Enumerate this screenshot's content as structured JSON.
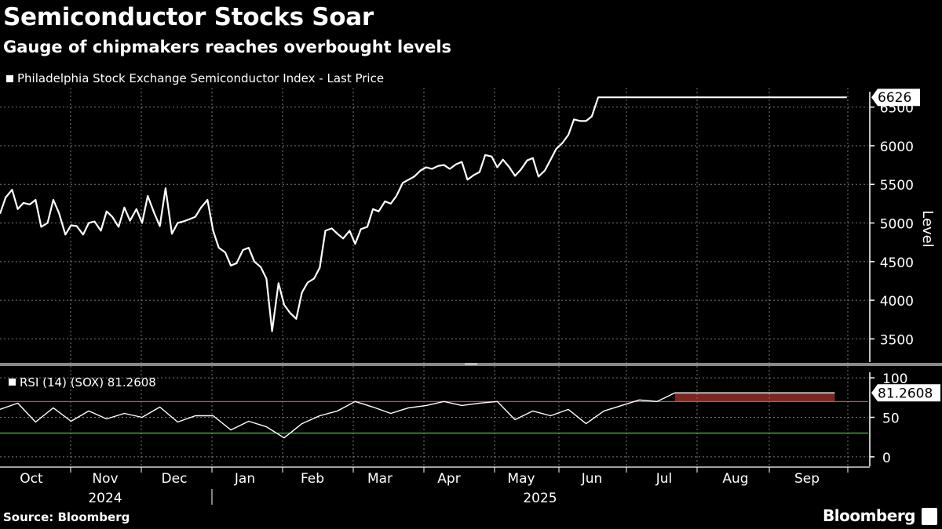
{
  "header": {
    "title": "Semiconductor Stocks Soar",
    "subtitle": "Gauge of chipmakers reaches overbought levels"
  },
  "footer": {
    "source": "Source: Bloomberg",
    "brand": "Bloomberg"
  },
  "colors": {
    "background": "#000000",
    "line": "#ffffff",
    "grid": "#7a7a7a",
    "overbought": "#e0453c",
    "oversold": "#57c04b"
  },
  "chart_data": [
    {
      "type": "line",
      "name": "price",
      "legend": "Philadelphia Stock Exchange Semiconductor Index - Last Price",
      "ylabel": "Level",
      "ylim": [
        3200,
        6750
      ],
      "yticks": [
        3500,
        4000,
        4500,
        5000,
        5500,
        6000,
        6500
      ],
      "ytick_labels": [
        "3500",
        "4000",
        "4500",
        "5000",
        "5500",
        "6000",
        "6500"
      ],
      "last_value_label": "6626",
      "x": [
        0,
        0.08,
        0.17,
        0.25,
        0.33,
        0.42,
        0.5,
        0.58,
        0.67,
        0.75,
        0.83,
        0.92,
        1,
        1.08,
        1.17,
        1.25,
        1.33,
        1.42,
        1.5,
        1.58,
        1.67,
        1.75,
        1.83,
        1.92,
        2,
        2.08,
        2.17,
        2.25,
        2.33,
        2.42,
        2.5,
        2.58,
        2.67,
        2.75,
        2.83,
        2.92,
        3,
        3.08,
        3.17,
        3.25,
        3.33,
        3.42,
        3.5,
        3.58,
        3.67,
        3.75,
        3.83,
        3.92,
        4,
        4.08,
        4.17,
        4.25,
        4.33,
        4.42,
        4.5,
        4.58,
        4.67,
        4.75,
        4.83,
        4.92,
        5,
        5.08,
        5.17,
        5.25,
        5.33,
        5.42,
        5.5,
        5.58,
        5.67,
        5.75,
        5.83,
        5.92,
        6,
        6.08,
        6.17,
        6.25,
        6.33,
        6.42,
        6.5,
        6.58,
        6.67,
        6.75,
        6.83,
        6.92,
        7,
        7.08,
        7.17,
        7.25,
        7.33,
        7.42,
        7.5,
        7.58,
        7.67,
        7.75,
        7.83,
        7.92,
        8,
        8.08,
        8.17,
        8.25,
        8.33,
        8.42,
        8.5,
        8.58,
        8.67,
        8.75,
        8.83,
        8.92,
        9,
        9.08,
        9.17,
        9.25,
        9.33,
        9.42,
        9.5,
        9.58,
        9.67,
        9.75,
        9.83,
        9.92,
        10,
        10.08,
        10.17,
        10.25,
        10.33,
        10.42,
        10.5,
        10.58,
        10.67,
        10.75,
        10.83,
        10.92,
        11,
        11.08,
        11.17,
        11.25,
        11.33,
        11.42,
        11.5,
        11.58,
        11.67,
        11.75,
        11.83,
        11.92,
        12
      ],
      "values": [
        5120,
        5330,
        5430,
        5180,
        5260,
        5240,
        5300,
        4950,
        5000,
        5300,
        5130,
        4850,
        4970,
        4960,
        4850,
        5000,
        5020,
        4900,
        5150,
        5080,
        4950,
        5200,
        5030,
        5180,
        5000,
        5350,
        5130,
        4960,
        5450,
        4860,
        5000,
        5020,
        5050,
        5080,
        5200,
        5300,
        4900,
        4680,
        4620,
        4450,
        4480,
        4650,
        4680,
        4500,
        4430,
        4280,
        3600,
        4220,
        3940,
        3840,
        3760,
        4100,
        4230,
        4280,
        4420,
        4900,
        4930,
        4860,
        4800,
        4900,
        4730,
        4920,
        4950,
        5180,
        5150,
        5280,
        5250,
        5350,
        5520,
        5560,
        5600,
        5680,
        5720,
        5700,
        5740,
        5750,
        5700,
        5760,
        5790,
        5560,
        5620,
        5660,
        5880,
        5860,
        5720,
        5820,
        5720,
        5610,
        5690,
        5810,
        5840,
        5600,
        5680,
        5820,
        5960,
        6040,
        6140,
        6340,
        6320,
        6320,
        6380,
        6626,
        6626,
        6626,
        6626,
        6626,
        6626,
        6626,
        6626,
        6626,
        6626,
        6626,
        6626,
        6626,
        6626,
        6626,
        6626,
        6626,
        6626,
        6626,
        6626,
        6626,
        6626,
        6626,
        6626,
        6626,
        6626,
        6626,
        6626,
        6626,
        6626,
        6626,
        6626,
        6626,
        6626,
        6626,
        6626,
        6626,
        6626,
        6626,
        6626,
        6626,
        6626,
        6626,
        6626
      ]
    },
    {
      "type": "line",
      "name": "rsi",
      "legend": "RSI (14) (SOX) 81.2608",
      "ylim": [
        -12,
        112
      ],
      "yticks": [
        0,
        50,
        100
      ],
      "ytick_labels": [
        "0",
        "50",
        "100"
      ],
      "last_value_label": "81.2608",
      "overbought": 70,
      "oversold": 30,
      "x": [
        0,
        0.25,
        0.5,
        0.75,
        1,
        1.25,
        1.5,
        1.75,
        2,
        2.25,
        2.5,
        2.75,
        3,
        3.25,
        3.5,
        3.75,
        4,
        4.25,
        4.5,
        4.75,
        5,
        5.25,
        5.5,
        5.75,
        6,
        6.25,
        6.5,
        6.75,
        7,
        7.25,
        7.5,
        7.75,
        8,
        8.25,
        8.5,
        8.75,
        9,
        9.25,
        9.5,
        9.75,
        10,
        10.25,
        10.5,
        10.75,
        11,
        11.25,
        11.5,
        11.75,
        12
      ],
      "values": [
        60,
        68,
        44,
        62,
        45,
        58,
        48,
        55,
        50,
        63,
        44,
        52,
        52,
        34,
        45,
        38,
        24,
        42,
        52,
        58,
        70,
        63,
        55,
        62,
        65,
        70,
        65,
        68,
        70,
        47,
        58,
        52,
        60,
        42,
        58,
        65,
        72,
        70,
        81,
        81,
        81,
        81,
        81,
        81,
        81,
        81,
        81,
        81,
        81
      ]
    }
  ],
  "x_axis": {
    "months": [
      "Oct",
      "Nov",
      "Dec",
      "Jan",
      "Feb",
      "Mar",
      "Apr",
      "May",
      "Jun",
      "Jul",
      "Aug",
      "Sep"
    ],
    "years": [
      "2024",
      "2025"
    ]
  }
}
